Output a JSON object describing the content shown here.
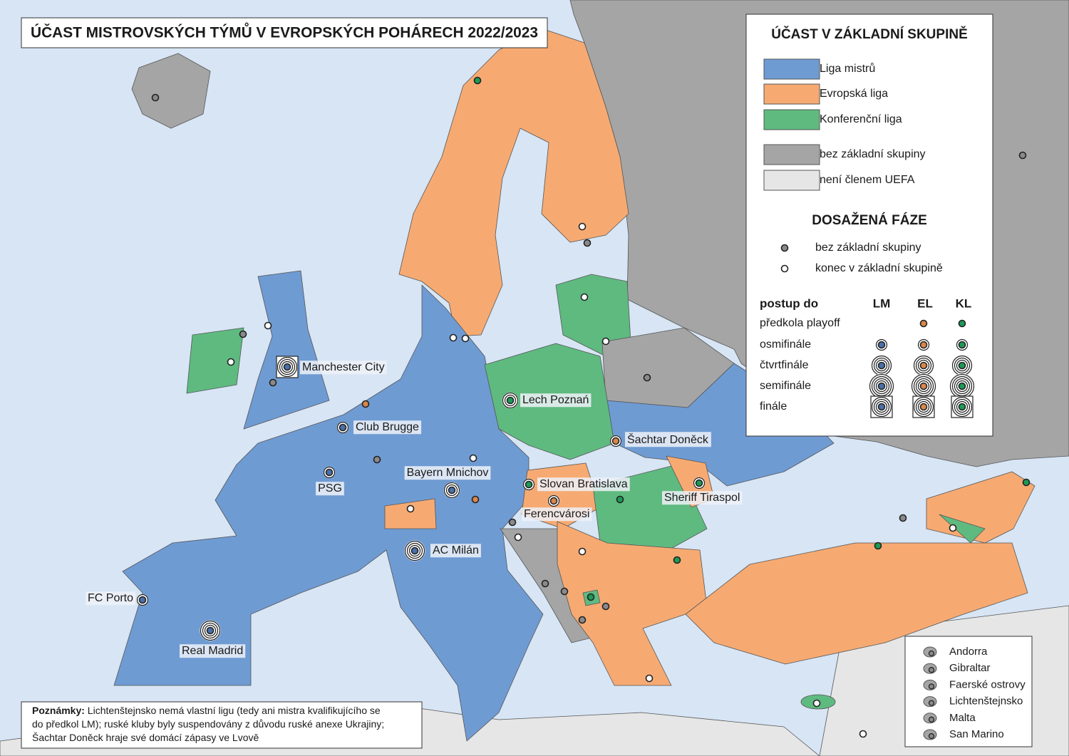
{
  "title": "ÚČAST MISTROVSKÝCH TÝMŮ V EVROPSKÝCH POHÁRECH 2022/2023",
  "legend": {
    "title": "ÚČAST V ZÁKLADNÍ SKUPINĚ",
    "items": [
      {
        "label": "Liga mistrů",
        "color": "#6f9bd3"
      },
      {
        "label": "Evropská liga",
        "color": "#f6aa72"
      },
      {
        "label": "Konferenční liga",
        "color": "#5fba80"
      },
      {
        "label": "bez základní skupiny",
        "color": "#a5a5a5"
      },
      {
        "label": "není členem UEFA",
        "color": "#e6e6e6"
      }
    ]
  },
  "phases": {
    "title": "DOSAŽENÁ FÁZE",
    "items": [
      "bez základní skupiny",
      "konec v základní skupině"
    ],
    "header": [
      "postup do",
      "LM",
      "EL",
      "KL"
    ],
    "rows": [
      "předkola playoff",
      "osmifinále",
      "čtvrtfinále",
      "semifinále",
      "finále"
    ]
  },
  "clubs": [
    "Manchester City",
    "Lech Poznań",
    "Club Brugge",
    "PSG",
    "Bayern Mnichov",
    "Šachtar Doněck",
    "Slovan Bratislava",
    "Ferencvárosi",
    "Sheriff Tiraspol",
    "AC Milán",
    "FC Porto",
    "Real Madrid"
  ],
  "notes": {
    "label": "Poznámky:",
    "lines": [
      " Lichtenštejnsko nemá vlastní ligu (tedy ani mistra kvalifikujícího se",
      "do předkol LM); ruské kluby byly suspendovány z důvodu ruské anexe Ukrajiny;",
      "Šachtar Doněck hraje své domácí zápasy ve Lvově"
    ]
  },
  "microstates": [
    "Andorra",
    "Gibraltar",
    "Faerské ostrovy",
    "Lichtenštejnsko",
    "Malta",
    "San Marino"
  ]
}
